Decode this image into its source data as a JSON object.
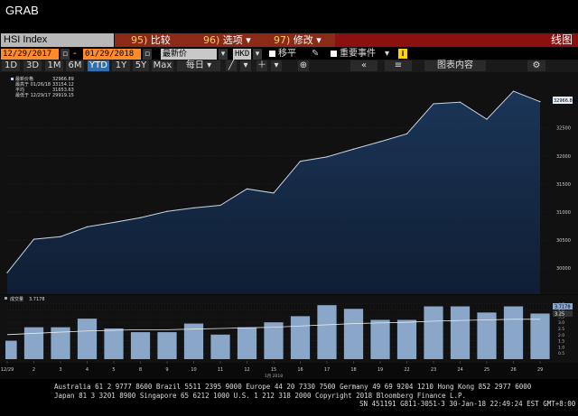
{
  "window": {
    "title": "GRAB"
  },
  "header": {
    "ticker": "HSI Index",
    "menu": [
      {
        "num": "95)",
        "label": "比较"
      },
      {
        "num": "96)",
        "label": "选项"
      },
      {
        "num": "97)",
        "label": "修改"
      }
    ],
    "chart_type_label": "线图"
  },
  "controls": {
    "start_date": "12/29/2017",
    "end_date": "01/29/2018",
    "field_value": "最新价",
    "currency": "HKD",
    "move_label": "移平",
    "events_label": "重要事件",
    "info": "i",
    "table_label": "图表内容"
  },
  "ranges": [
    "1D",
    "3D",
    "1M",
    "6M",
    "YTD",
    "1Y",
    "5Y",
    "Max"
  ],
  "active_range": "YTD",
  "frequency": "每日",
  "legend": {
    "last_price": {
      "label": "最新价格",
      "value": "32966.89"
    },
    "high": {
      "label": "最高于 01/26/18",
      "value": "33154.12"
    },
    "avg": {
      "label": "平均",
      "value": "31653.63"
    },
    "low": {
      "label": "最低于 12/29/17",
      "value": "29919.15"
    }
  },
  "volume_legend": {
    "label": "成交量",
    "value": "3.7178"
  },
  "price_tag": "32966.89",
  "volume_tags": [
    "3.7178",
    "3.25"
  ],
  "chart_data": [
    {
      "type": "area",
      "x": [
        "12/29",
        "1/2",
        "1/3",
        "1/4",
        "1/5",
        "1/8",
        "1/9",
        "1/10",
        "1/11",
        "1/12",
        "1/15",
        "1/16",
        "1/17",
        "1/18",
        "1/19",
        "1/22",
        "1/23",
        "1/24",
        "1/25",
        "1/26",
        "1/29"
      ],
      "values": [
        29919.15,
        30515.31,
        30560.95,
        30736.48,
        30814.64,
        30899.53,
        31011.39,
        31073.72,
        31120.39,
        31412.54,
        31338.97,
        31904.75,
        31983.41,
        32121.9,
        32254.89,
        32393.41,
        32930.7,
        32958.69,
        32654.45,
        33154.12,
        32966.89
      ],
      "ylim": [
        29600,
        33300
      ],
      "yticks": [
        30000,
        30500,
        31000,
        31500,
        32000,
        32500
      ],
      "grid": true
    },
    {
      "type": "bar",
      "x": [
        "12/29",
        "1/2",
        "1/3",
        "1/4",
        "1/5",
        "1/8",
        "1/9",
        "1/10",
        "1/11",
        "1/12",
        "1/15",
        "1/16",
        "1/17",
        "1/18",
        "1/19",
        "1/22",
        "1/23",
        "1/24",
        "1/25",
        "1/26",
        "1/29"
      ],
      "values": [
        1.5,
        2.6,
        2.6,
        3.3,
        2.5,
        2.2,
        2.2,
        2.9,
        2.0,
        2.6,
        3.0,
        3.5,
        4.4,
        4.1,
        3.2,
        3.2,
        4.3,
        4.3,
        3.8,
        4.3,
        3.7178
      ],
      "moving_average": [
        2.0,
        2.1,
        2.2,
        2.3,
        2.35,
        2.4,
        2.4,
        2.45,
        2.5,
        2.55,
        2.6,
        2.7,
        2.8,
        2.9,
        2.95,
        3.0,
        3.1,
        3.15,
        3.2,
        3.25,
        3.25
      ],
      "ylim": [
        0,
        5
      ],
      "yticks": [
        0.5,
        1.0,
        1.5,
        2.0,
        2.5,
        3.0,
        3.5,
        4.0,
        4.5
      ],
      "xtick_labels": [
        "12/29",
        "2",
        "3",
        "4",
        "5",
        "8",
        "9",
        "10",
        "11",
        "12",
        "15",
        "16",
        "17",
        "18",
        "19",
        "22",
        "23",
        "24",
        "25",
        "26",
        "29"
      ],
      "year_label": "1月 2018"
    }
  ],
  "footer": {
    "line1": "Australia 61 2 9777 8600 Brazil 5511 2395 9000 Europe 44 20 7330 7500 Germany 49 69 9204 1210 Hong Kong 852 2977 6000",
    "line2": "Japan 81 3 3201 8900        Singapore 65 6212 1000        U.S. 1 212 318 2000          Copyright 2018 Bloomberg Finance L.P.",
    "line3": "SN 451191 G811-3051-3 30-Jan-18 22:49:24 EST  GMT+8:00"
  },
  "colors": {
    "accent_orange": "#ff8a2a",
    "menu_red": "#8b2a16",
    "area_fill": "#14263f",
    "line": "#c8d4e4",
    "bar": "#8aa6c8"
  }
}
